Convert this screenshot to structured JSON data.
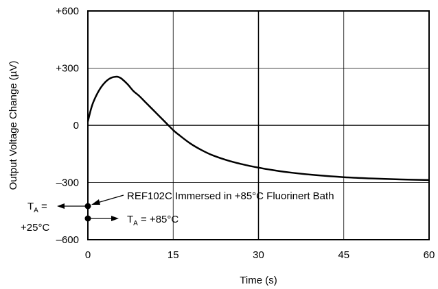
{
  "chart_data": {
    "type": "line",
    "xlabel": "Time (s)",
    "ylabel": "Output Voltage Change (µV)",
    "xlim": [
      0,
      60
    ],
    "ylim": [
      -600,
      600
    ],
    "x_ticks": [
      0,
      15,
      30,
      45,
      60
    ],
    "x_tick_labels": [
      "0",
      "15",
      "30",
      "45",
      "60"
    ],
    "y_ticks": [
      600,
      300,
      0,
      -300,
      -600
    ],
    "y_tick_labels": [
      "+600",
      "+300",
      "0",
      "–300",
      "–600"
    ],
    "grid": true,
    "series": [
      {
        "x": [
          0,
          0.5,
          1,
          2,
          3,
          4,
          5,
          5.5,
          6,
          7,
          8,
          9,
          10,
          11,
          12,
          13,
          14,
          15,
          16,
          18,
          20,
          22,
          25,
          28,
          30,
          33,
          36,
          40,
          45,
          50,
          55,
          60
        ],
        "y": [
          20,
          80,
          125,
          185,
          225,
          248,
          255,
          252,
          243,
          215,
          180,
          155,
          125,
          95,
          65,
          35,
          5,
          -25,
          -50,
          -95,
          -130,
          -158,
          -188,
          -210,
          -222,
          -237,
          -249,
          -261,
          -272,
          -279,
          -284,
          -287
        ]
      }
    ],
    "annotations": {
      "event": "REF102C Immersed in +85°C Fluorinert Bath",
      "ta_start_symbol": "T",
      "ta_start_sub": "A",
      "ta_start_eq": " =",
      "ta_start_value": "+25°C",
      "ta_end_symbol": "T",
      "ta_end_sub": "A",
      "ta_end_value": " = +85°C"
    }
  }
}
